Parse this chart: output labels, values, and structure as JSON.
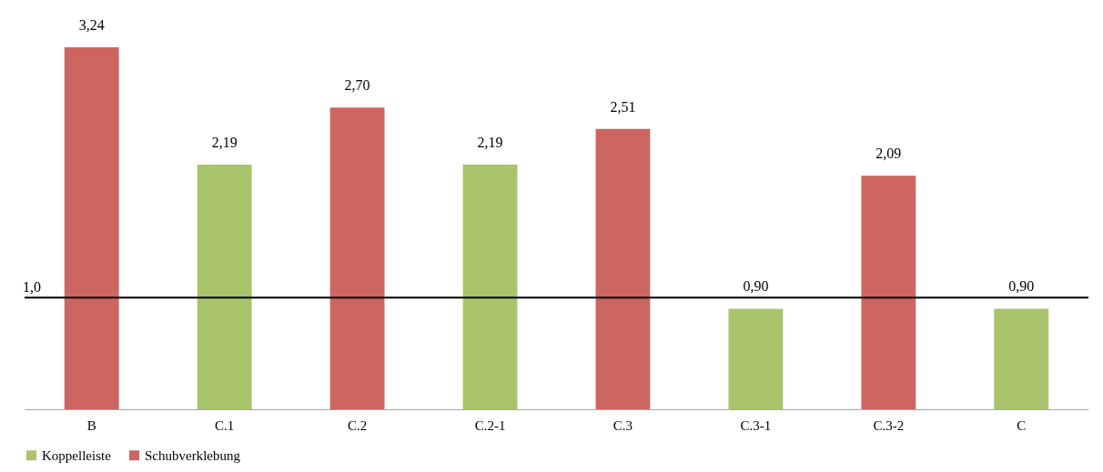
{
  "chart_data": {
    "type": "bar",
    "categories": [
      "B",
      "C.1",
      "C.2",
      "C.2-1",
      "C.3",
      "C.3-1",
      "C.3-2",
      "C"
    ],
    "series": [
      {
        "name": "Koppelleiste",
        "color": "#a9c46b",
        "values": [
          null,
          2.19,
          null,
          2.19,
          null,
          0.9,
          null,
          0.9
        ],
        "value_labels": [
          null,
          "2,19",
          null,
          "2,19",
          null,
          "0,90",
          null,
          "0,90"
        ]
      },
      {
        "name": "Schubverklebung",
        "color": "#cd6660",
        "values": [
          3.24,
          null,
          2.7,
          null,
          2.51,
          null,
          2.09,
          null
        ],
        "value_labels": [
          "3,24",
          null,
          "2,70",
          null,
          "2,51",
          null,
          "2,09",
          null
        ]
      }
    ],
    "tick_labels": "x",
    "grid": false,
    "legend": "bottom",
    "ref_lines": [
      {
        "axis": "y",
        "value": 1.0,
        "label": "1,0",
        "color": "#000000"
      }
    ]
  }
}
